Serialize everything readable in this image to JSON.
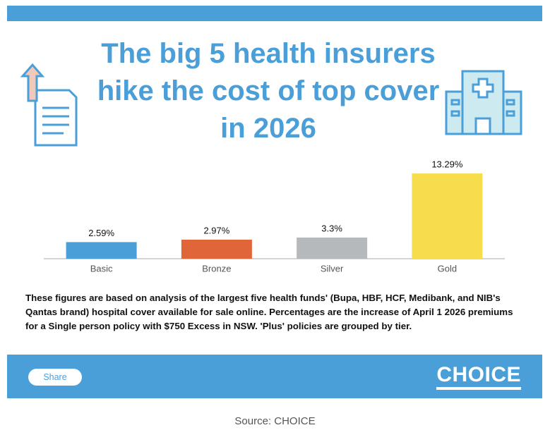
{
  "chart_data": {
    "type": "bar",
    "title": "The big 5 health insurers hike the cost of top cover in 2026",
    "categories": [
      "Basic",
      "Bronze",
      "Silver",
      "Gold"
    ],
    "values": [
      2.59,
      2.97,
      3.3,
      13.29
    ],
    "value_labels": [
      "2.59%",
      "2.97%",
      "3.3%",
      "13.29%"
    ],
    "colors": [
      "#4a9fd8",
      "#e0663a",
      "#b6b9bb",
      "#f7dd4b"
    ]
  },
  "note": "These figures are based on analysis of the largest five health funds' (Bupa, HBF, HCF, Medibank, and NIB's Qantas brand) hospital cover available for sale online. Percentages are the increase of April 1 2026 premiums for a Single person policy with $750 Excess in NSW. 'Plus' policies are grouped by tier.",
  "share": "Share",
  "brand": "CHOICE",
  "source": "Source: CHOICE"
}
